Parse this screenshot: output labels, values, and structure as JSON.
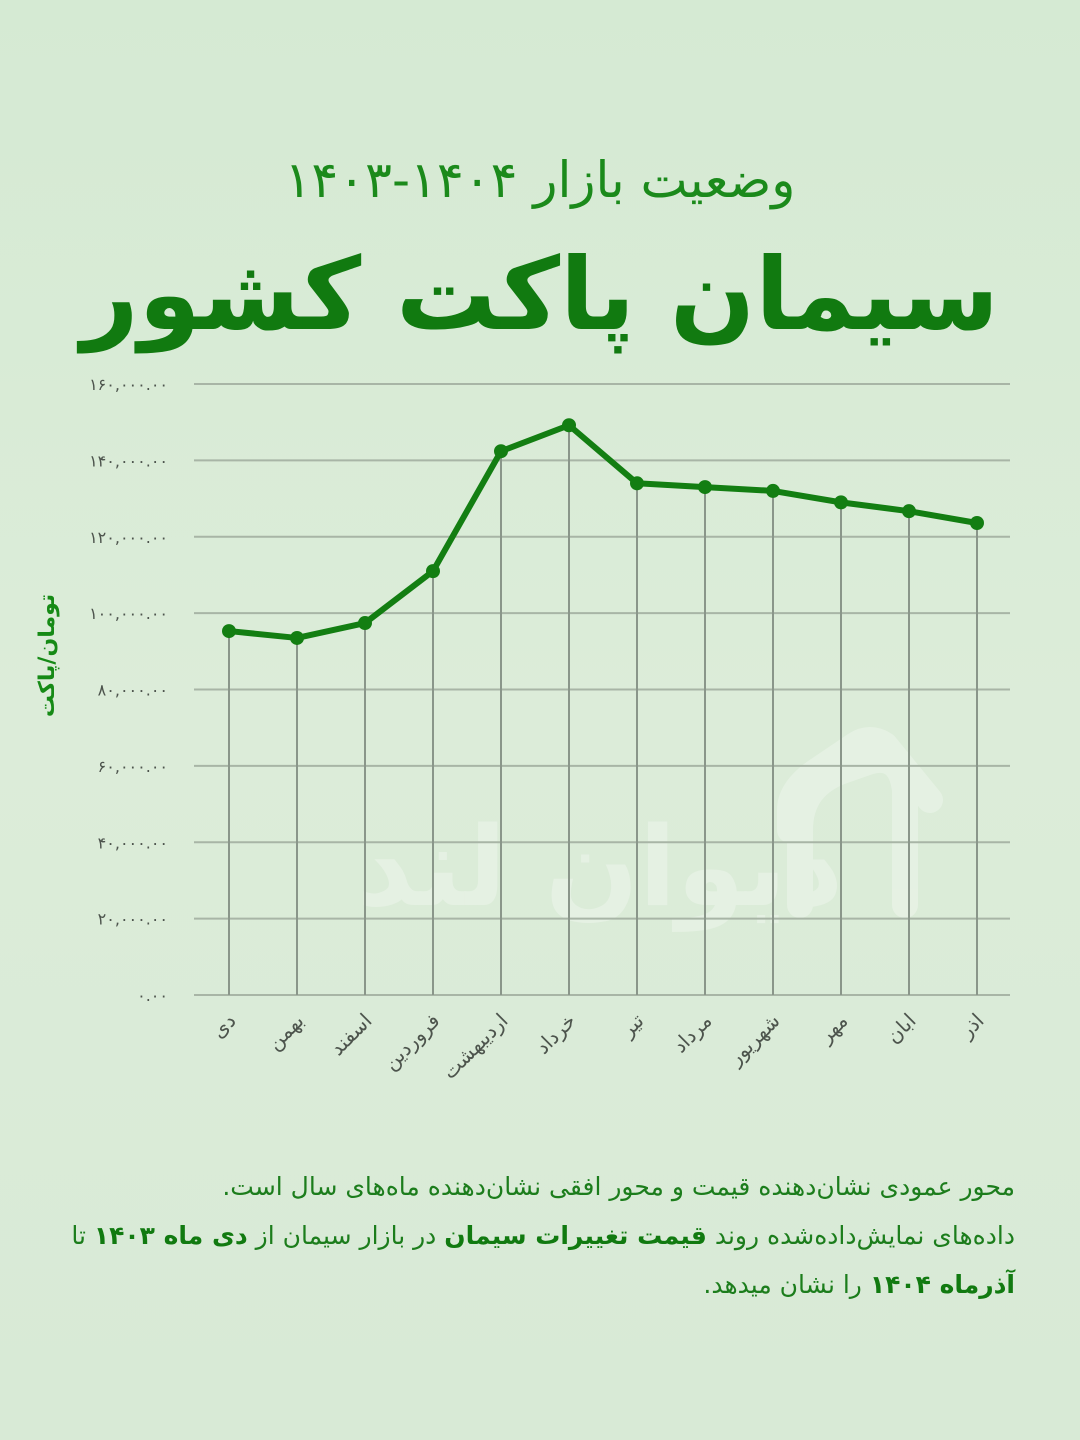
{
  "header": {
    "subtitle": "وضعیت بازار ۱۴۰۴-۱۴۰۳",
    "title": "سیمان پاکت کشور"
  },
  "watermark": {
    "text": "دیوان لند",
    "icon": "house-icon"
  },
  "description": {
    "line1": "محور عمودی نشان‌دهنده قیمت و محور افقی نشان‌دهنده ماه‌های سال است.",
    "p2_a": "داده‌های نمایش‌داده‌شده روند ",
    "p2_b": "قیمت تغییرات سیمان",
    "p2_c": " در بازار سیمان از ",
    "p2_d": "دی ماه ۱۴۰۳",
    "p2_e": " تا ",
    "p2_f": "آذرماه ۱۴۰۴",
    "p2_g": " را نشان میدهد."
  },
  "colors": {
    "line": "#137e12",
    "grid": "#a8b5a6",
    "drop": "#8a968a",
    "tick": "#4d544d",
    "background": "#d8ebd6"
  },
  "chart_data": {
    "type": "line",
    "title": "سیمان پاکت کشور",
    "subtitle": "وضعیت بازار ۱۴۰۴-۱۴۰۳",
    "xlabel": "",
    "ylabel": "تومان/پاکت",
    "categories": [
      "دی",
      "بهمن",
      "اسفند",
      "فروردین",
      "اردیبهشت",
      "خرداد",
      "تیر",
      "مرداد",
      "شهریور",
      "مهر",
      "ابان",
      "اذر"
    ],
    "series": [
      {
        "name": "سیمان پاکت",
        "values": [
          95300,
          93500,
          97400,
          111000,
          142400,
          149200,
          134000,
          133000,
          132000,
          129000,
          126700,
          123600
        ]
      }
    ],
    "ylim": [
      0,
      160000
    ],
    "yticks": [
      0,
      20000,
      40000,
      60000,
      80000,
      100000,
      120000,
      140000,
      160000
    ],
    "ytick_labels": [
      "۰.۰۰",
      "۲۰,۰۰۰.۰۰",
      "۴۰,۰۰۰.۰۰",
      "۶۰,۰۰۰.۰۰",
      "۸۰,۰۰۰.۰۰",
      "۱۰۰,۰۰۰.۰۰",
      "۱۲۰,۰۰۰.۰۰",
      "۱۴۰,۰۰۰.۰۰",
      "۱۶۰,۰۰۰.۰۰"
    ],
    "grid": true,
    "drop_lines": true,
    "legend": "none"
  }
}
